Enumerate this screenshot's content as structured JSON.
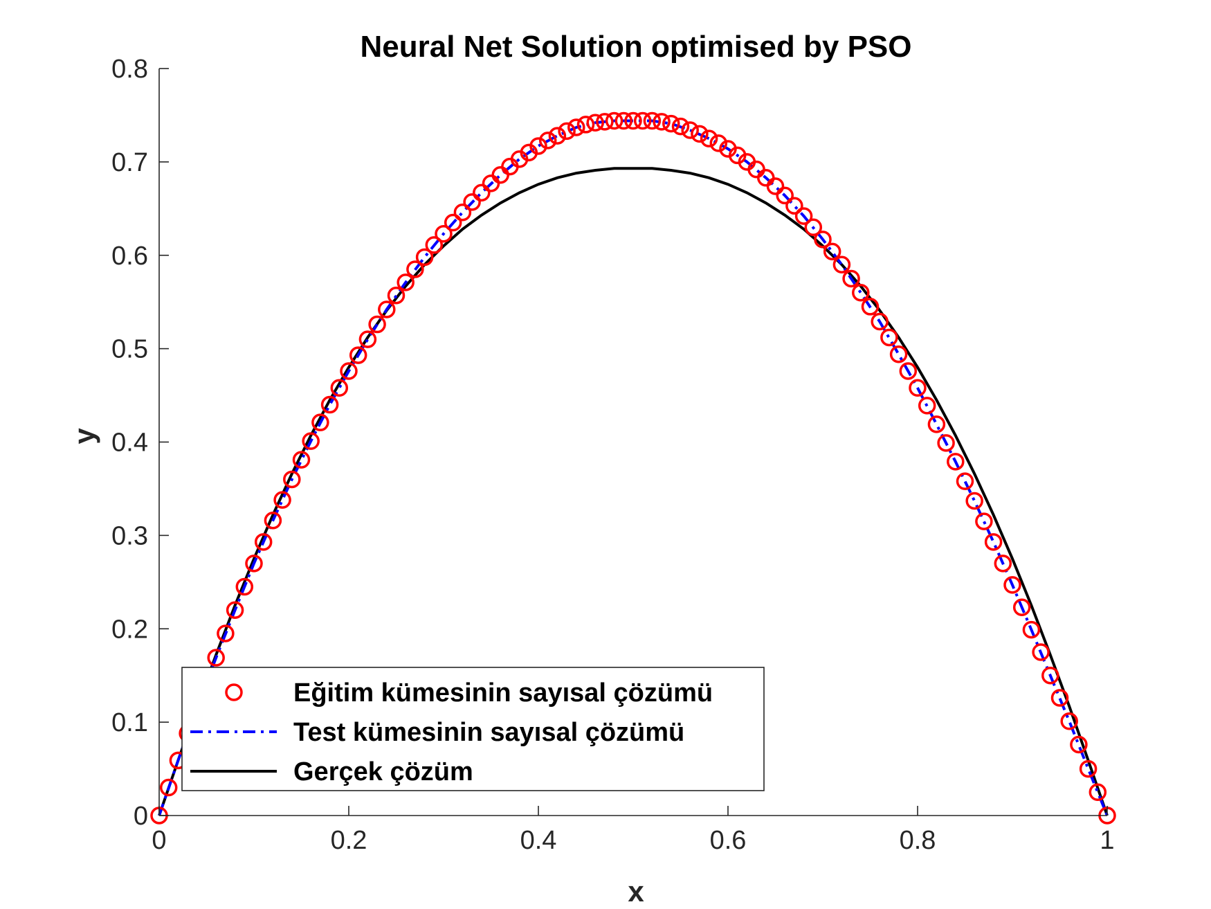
{
  "chart_data": {
    "type": "line",
    "title": "Neural Net Solution optimised by PSO",
    "xlabel": "x",
    "ylabel": "y",
    "xlim": [
      0,
      1
    ],
    "ylim": [
      0,
      0.8
    ],
    "xticks": [
      0,
      0.2,
      0.4,
      0.6,
      0.8,
      1
    ],
    "xtick_labels": [
      "0",
      "0.2",
      "0.4",
      "0.6",
      "0.8",
      "1"
    ],
    "yticks": [
      0,
      0.1,
      0.2,
      0.3,
      0.4,
      0.5,
      0.6,
      0.7,
      0.8
    ],
    "ytick_labels": [
      "0",
      "0.1",
      "0.2",
      "0.3",
      "0.4",
      "0.5",
      "0.6",
      "0.7",
      "0.8"
    ],
    "grid": false,
    "legend_position": "bottom-left",
    "series": [
      {
        "name": "Eğitim kümesinin sayısal çözümü",
        "style": "markers",
        "marker": "circle",
        "color": "#ff0000",
        "x": [
          0,
          0.01,
          0.02,
          0.03,
          0.06,
          0.07,
          0.08,
          0.09,
          0.1,
          0.11,
          0.12,
          0.13,
          0.14,
          0.15,
          0.16,
          0.17,
          0.18,
          0.19,
          0.2,
          0.21,
          0.22,
          0.23,
          0.24,
          0.25,
          0.26,
          0.27,
          0.28,
          0.29,
          0.3,
          0.31,
          0.32,
          0.33,
          0.34,
          0.35,
          0.36,
          0.37,
          0.38,
          0.39,
          0.4,
          0.41,
          0.42,
          0.43,
          0.44,
          0.45,
          0.46,
          0.47,
          0.48,
          0.49,
          0.5,
          0.51,
          0.52,
          0.53,
          0.54,
          0.55,
          0.56,
          0.57,
          0.58,
          0.59,
          0.6,
          0.61,
          0.62,
          0.63,
          0.64,
          0.65,
          0.66,
          0.67,
          0.68,
          0.69,
          0.7,
          0.71,
          0.72,
          0.73,
          0.74,
          0.75,
          0.76,
          0.77,
          0.78,
          0.79,
          0.8,
          0.81,
          0.82,
          0.83,
          0.84,
          0.85,
          0.86,
          0.87,
          0.88,
          0.89,
          0.9,
          0.91,
          0.92,
          0.93,
          0.94,
          0.95,
          0.96,
          0.97,
          0.98,
          0.99,
          1
        ],
        "y": [
          0,
          0.03,
          0.059,
          0.088,
          0.169,
          0.195,
          0.22,
          0.245,
          0.27,
          0.293,
          0.316,
          0.338,
          0.36,
          0.381,
          0.401,
          0.421,
          0.44,
          0.458,
          0.476,
          0.493,
          0.51,
          0.526,
          0.542,
          0.557,
          0.571,
          0.585,
          0.598,
          0.611,
          0.623,
          0.635,
          0.646,
          0.657,
          0.667,
          0.677,
          0.686,
          0.695,
          0.703,
          0.71,
          0.717,
          0.723,
          0.728,
          0.733,
          0.737,
          0.74,
          0.742,
          0.743,
          0.744,
          0.744,
          0.744,
          0.744,
          0.744,
          0.743,
          0.741,
          0.738,
          0.734,
          0.73,
          0.725,
          0.72,
          0.714,
          0.707,
          0.7,
          0.692,
          0.683,
          0.674,
          0.664,
          0.653,
          0.642,
          0.63,
          0.617,
          0.604,
          0.59,
          0.575,
          0.56,
          0.545,
          0.529,
          0.512,
          0.494,
          0.476,
          0.458,
          0.439,
          0.419,
          0.399,
          0.379,
          0.358,
          0.337,
          0.315,
          0.293,
          0.27,
          0.247,
          0.223,
          0.199,
          0.175,
          0.15,
          0.126,
          0.101,
          0.076,
          0.05,
          0.025,
          0
        ]
      },
      {
        "name": "Test kümesinin sayısal çözümü",
        "style": "dash-dot",
        "color": "#0000ff",
        "x": [
          0,
          0.02,
          0.04,
          0.06,
          0.08,
          0.1,
          0.12,
          0.14,
          0.16,
          0.18,
          0.2,
          0.22,
          0.24,
          0.26,
          0.28,
          0.3,
          0.32,
          0.34,
          0.36,
          0.38,
          0.4,
          0.42,
          0.44,
          0.46,
          0.48,
          0.5,
          0.52,
          0.54,
          0.56,
          0.58,
          0.6,
          0.62,
          0.64,
          0.66,
          0.68,
          0.7,
          0.72,
          0.74,
          0.76,
          0.78,
          0.8,
          0.82,
          0.84,
          0.86,
          0.88,
          0.9,
          0.92,
          0.94,
          0.96,
          0.98,
          1
        ],
        "y": [
          0,
          0.059,
          0.116,
          0.169,
          0.22,
          0.27,
          0.316,
          0.36,
          0.401,
          0.44,
          0.476,
          0.51,
          0.542,
          0.571,
          0.598,
          0.623,
          0.646,
          0.667,
          0.686,
          0.703,
          0.717,
          0.728,
          0.737,
          0.742,
          0.744,
          0.744,
          0.744,
          0.741,
          0.734,
          0.725,
          0.714,
          0.7,
          0.683,
          0.664,
          0.642,
          0.617,
          0.59,
          0.56,
          0.529,
          0.494,
          0.458,
          0.419,
          0.379,
          0.337,
          0.293,
          0.247,
          0.199,
          0.15,
          0.101,
          0.05,
          0
        ]
      },
      {
        "name": "Gerçek çözüm",
        "style": "solid",
        "color": "#000000",
        "x": [
          0,
          0.02,
          0.04,
          0.06,
          0.08,
          0.1,
          0.12,
          0.14,
          0.16,
          0.18,
          0.2,
          0.22,
          0.24,
          0.26,
          0.28,
          0.3,
          0.32,
          0.34,
          0.36,
          0.38,
          0.4,
          0.42,
          0.44,
          0.46,
          0.48,
          0.5,
          0.52,
          0.54,
          0.56,
          0.58,
          0.6,
          0.62,
          0.64,
          0.66,
          0.68,
          0.7,
          0.72,
          0.74,
          0.76,
          0.78,
          0.8,
          0.82,
          0.84,
          0.86,
          0.88,
          0.9,
          0.92,
          0.94,
          0.96,
          0.98,
          1
        ],
        "y": [
          0,
          0.059,
          0.117,
          0.172,
          0.225,
          0.275,
          0.322,
          0.366,
          0.407,
          0.445,
          0.48,
          0.512,
          0.541,
          0.567,
          0.59,
          0.61,
          0.628,
          0.643,
          0.656,
          0.667,
          0.676,
          0.683,
          0.688,
          0.691,
          0.693,
          0.693,
          0.693,
          0.691,
          0.688,
          0.683,
          0.676,
          0.667,
          0.656,
          0.643,
          0.628,
          0.61,
          0.59,
          0.567,
          0.541,
          0.512,
          0.48,
          0.445,
          0.407,
          0.366,
          0.322,
          0.275,
          0.225,
          0.172,
          0.117,
          0.059,
          0
        ]
      }
    ]
  }
}
